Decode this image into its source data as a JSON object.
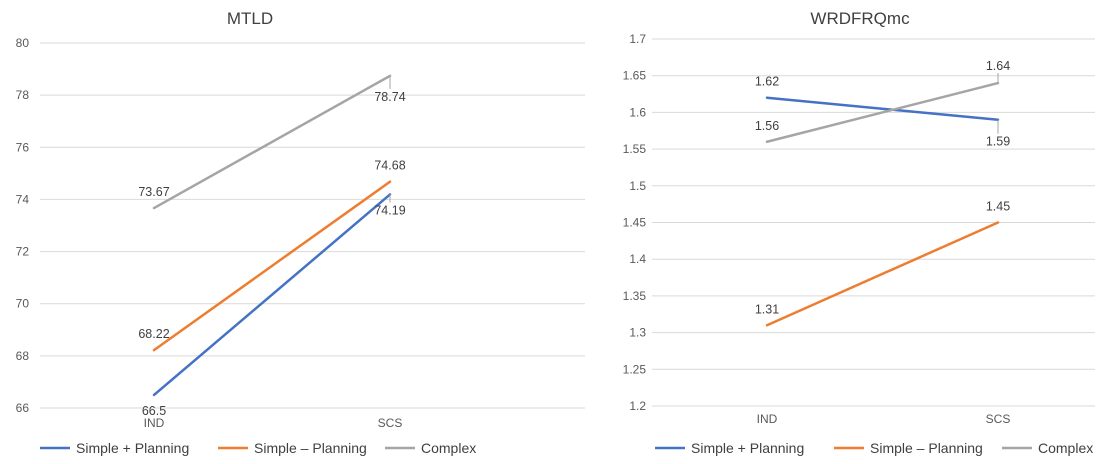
{
  "colors": {
    "Simple + Planning": "#4472c4",
    "Simple – Planning": "#ed7d31",
    "Complex": "#a5a5a5"
  },
  "chart_data": [
    {
      "type": "line",
      "title": "MTLD",
      "categories": [
        "IND",
        "SCS"
      ],
      "ylim": [
        66,
        80
      ],
      "yticks": [
        "66",
        "68",
        "70",
        "72",
        "74",
        "76",
        "78",
        "80"
      ],
      "yticks_values": [
        66,
        68,
        70,
        72,
        74,
        76,
        78,
        80
      ],
      "grid": true,
      "legend": "bottom",
      "series": [
        {
          "name": "Simple + Planning",
          "values": [
            66.5,
            74.19
          ],
          "labels": [
            "66.5",
            "74.19"
          ]
        },
        {
          "name": "Simple – Planning",
          "values": [
            68.22,
            74.68
          ],
          "labels": [
            "68.22",
            "74.68"
          ]
        },
        {
          "name": "Complex",
          "values": [
            73.67,
            78.74
          ],
          "labels": [
            "73.67",
            "78.74"
          ]
        }
      ]
    },
    {
      "type": "line",
      "title": "WRDFRQmc",
      "categories": [
        "IND",
        "SCS"
      ],
      "ylim": [
        1.2,
        1.7
      ],
      "yticks": [
        "1.2",
        "1.25",
        "1.3",
        "1.35",
        "1.4",
        "1.45",
        "1.5",
        "1.55",
        "1.6",
        "1.65",
        "1.7"
      ],
      "yticks_values": [
        1.2,
        1.25,
        1.3,
        1.35,
        1.4,
        1.45,
        1.5,
        1.55,
        1.6,
        1.65,
        1.7
      ],
      "grid": true,
      "legend": "bottom",
      "series": [
        {
          "name": "Simple + Planning",
          "values": [
            1.62,
            1.59
          ],
          "labels": [
            "1.62",
            "1.59"
          ]
        },
        {
          "name": "Simple – Planning",
          "values": [
            1.31,
            1.45
          ],
          "labels": [
            "1.31",
            "1.45"
          ]
        },
        {
          "name": "Complex",
          "values": [
            1.56,
            1.64
          ],
          "labels": [
            "1.56",
            "1.64"
          ]
        }
      ]
    }
  ]
}
